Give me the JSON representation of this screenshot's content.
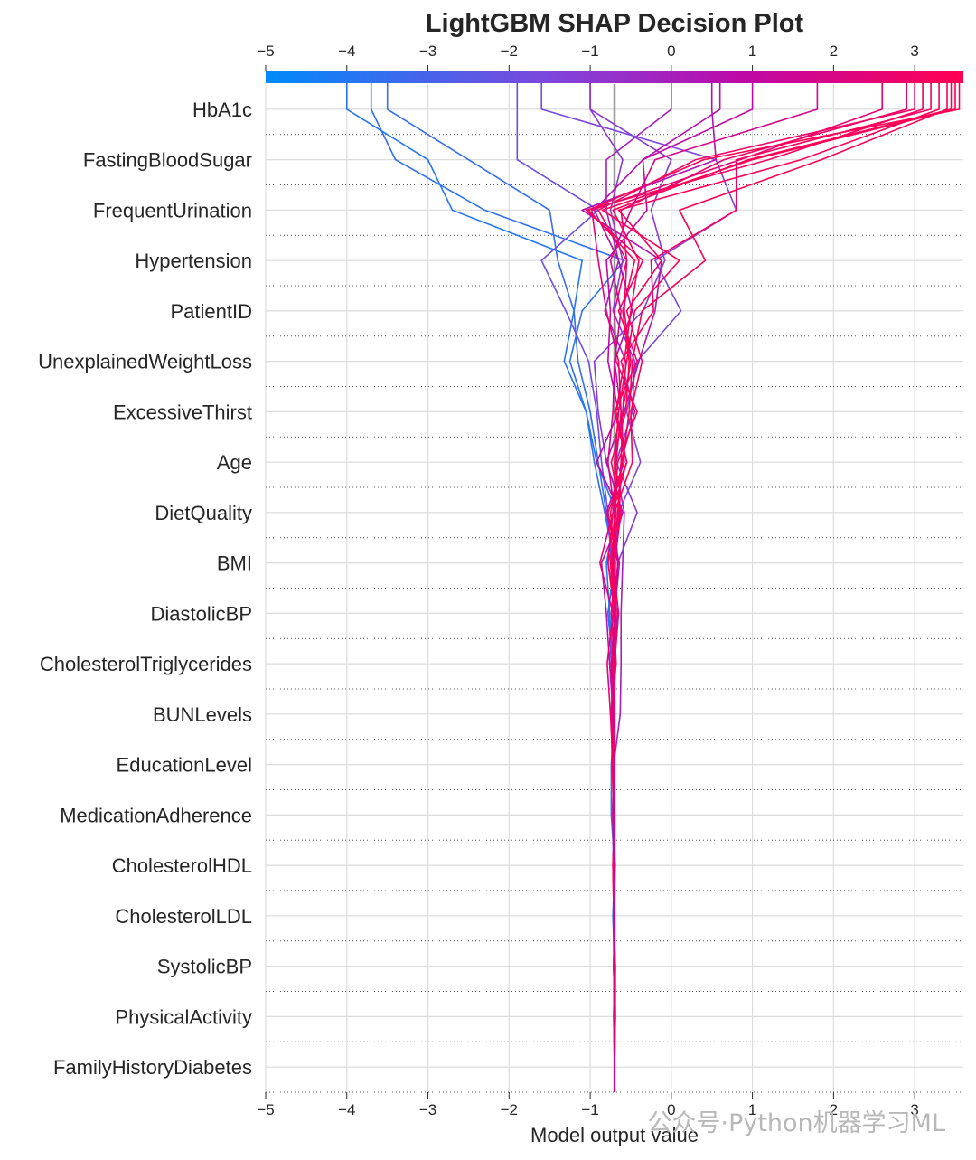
{
  "chart_data": {
    "type": "line",
    "title": "LightGBM SHAP Decision Plot",
    "xlabel": "Model output value",
    "xlim": [
      -5,
      3.6
    ],
    "x_ticks": [
      -5,
      -4,
      -3,
      -2,
      -1,
      0,
      1,
      2,
      3
    ],
    "x_tick_labels": [
      "−5",
      "−4",
      "−3",
      "−2",
      "−1",
      "0",
      "1",
      "2",
      "3"
    ],
    "base_value": -0.7,
    "features": [
      "HbA1c",
      "FastingBloodSugar",
      "FrequentUrination",
      "Hypertension",
      "PatientID",
      "UnexplainedWeightLoss",
      "ExcessiveThirst",
      "Age",
      "DietQuality",
      "BMI",
      "DiastolicBP",
      "CholesterolTriglycerides",
      "BUNLevels",
      "EducationLevel",
      "MedicationAdherence",
      "CholesterolHDL",
      "CholesterolLDL",
      "SystolicBP",
      "PhysicalActivity",
      "FamilyHistoryDiabetes"
    ],
    "colormap": [
      "#008afb",
      "#7c47dd",
      "#bd09a8",
      "#ff0052"
    ],
    "grid": true,
    "series": [
      {
        "values": [
          -0.7,
          -0.7,
          -0.71,
          -0.7,
          -0.71,
          -0.72,
          -0.7,
          -0.74,
          -0.72,
          -0.78,
          -0.7,
          -0.82,
          -0.95,
          -1.05,
          -1.25,
          -1.1,
          -0.58,
          -2.3,
          -3.4,
          -3.7
        ]
      },
      {
        "values": [
          -0.7,
          -0.7,
          -0.71,
          -0.7,
          -0.71,
          -0.72,
          -0.7,
          -0.74,
          -0.72,
          -0.78,
          -0.7,
          -0.8,
          -0.9,
          -1.0,
          -1.15,
          -1.2,
          -1.4,
          -1.5,
          -2.5,
          -3.5
        ]
      },
      {
        "values": [
          -0.7,
          -0.69,
          -0.7,
          -0.72,
          -0.7,
          -0.74,
          -0.74,
          -0.7,
          -0.72,
          -0.76,
          -0.8,
          -0.68,
          -0.92,
          -1.05,
          -1.32,
          -1.2,
          -1.1,
          -2.7,
          -3.0,
          -4.0
        ]
      },
      {
        "values": [
          -0.7,
          -0.7,
          -0.69,
          -0.71,
          -0.69,
          -0.73,
          -0.7,
          -0.72,
          -0.76,
          -0.72,
          -0.74,
          -0.78,
          -0.86,
          -0.92,
          -1.02,
          -1.3,
          -1.6,
          -0.9,
          -1.9,
          -1.9
        ]
      },
      {
        "values": [
          -0.7,
          -0.69,
          -0.69,
          -0.71,
          -0.7,
          -0.72,
          -0.71,
          -0.63,
          -0.62,
          -0.62,
          -0.6,
          -0.58,
          -0.7,
          -0.6,
          -0.56,
          -0.82,
          -0.65,
          -0.8,
          -0.8,
          0.0
        ]
      },
      {
        "values": [
          -0.7,
          -0.69,
          -0.7,
          -0.71,
          -0.7,
          -0.71,
          -0.7,
          -0.72,
          -0.69,
          -0.68,
          -0.78,
          -0.6,
          -0.8,
          -0.9,
          -0.95,
          -0.35,
          -0.08,
          -0.25,
          0.0,
          -1.0
        ]
      },
      {
        "values": [
          -0.7,
          -0.7,
          -0.7,
          -0.7,
          -0.72,
          -0.71,
          -0.7,
          -0.7,
          -0.71,
          -0.68,
          -0.72,
          -0.65,
          -0.38,
          -0.55,
          -0.42,
          0.12,
          -0.2,
          0.8,
          0.55,
          -1.6
        ]
      },
      {
        "values": [
          -0.7,
          -0.7,
          -0.7,
          -0.7,
          -0.71,
          -0.7,
          -0.7,
          -0.7,
          -0.72,
          -0.69,
          -0.66,
          -0.42,
          -0.68,
          -0.48,
          -0.45,
          -0.72,
          -0.6,
          -0.75,
          -0.6,
          -1.0
        ]
      },
      {
        "values": [
          -0.7,
          -0.7,
          -0.7,
          -0.7,
          -0.7,
          -0.71,
          -0.7,
          -0.71,
          -0.76,
          -0.8,
          -0.86,
          -0.6,
          -0.8,
          -0.58,
          -0.4,
          -0.2,
          -0.12,
          -1.1,
          0.55,
          0.5
        ]
      },
      {
        "values": [
          -0.7,
          -0.7,
          -0.7,
          -0.71,
          -0.7,
          -0.71,
          -0.7,
          -0.72,
          -0.74,
          -0.7,
          -0.64,
          -0.8,
          -0.58,
          -0.62,
          -0.7,
          -0.48,
          -0.65,
          -0.95,
          -0.35,
          0.6
        ]
      },
      {
        "values": [
          -0.7,
          -0.7,
          -0.7,
          -0.7,
          -0.71,
          -0.72,
          -0.71,
          -0.74,
          -0.7,
          -0.66,
          -0.7,
          -0.63,
          -0.92,
          -0.65,
          -0.78,
          -0.75,
          -0.8,
          -0.3,
          -0.35,
          1.0
        ]
      },
      {
        "values": [
          -0.7,
          -0.7,
          -0.71,
          -0.7,
          -0.7,
          -0.71,
          -0.72,
          -0.75,
          -0.79,
          -0.72,
          -0.88,
          -0.72,
          -0.68,
          -0.62,
          -0.65,
          -0.8,
          -0.9,
          -0.98,
          0.85,
          2.6
        ]
      },
      {
        "values": [
          -0.7,
          -0.71,
          -0.7,
          -0.71,
          -0.72,
          -0.7,
          -0.73,
          -0.74,
          -0.68,
          -0.71,
          -0.66,
          -0.78,
          -0.55,
          -0.7,
          -0.42,
          -0.65,
          -0.35,
          -1.05,
          1.2,
          3.1
        ]
      },
      {
        "values": [
          -0.7,
          -0.7,
          -0.71,
          -0.71,
          -0.7,
          -0.72,
          -0.71,
          -0.73,
          -0.7,
          -0.65,
          -0.72,
          -0.7,
          -0.48,
          -0.5,
          -0.36,
          -0.55,
          -0.12,
          -0.65,
          1.6,
          3.3
        ]
      },
      {
        "values": [
          -0.7,
          -0.7,
          -0.7,
          -0.71,
          -0.72,
          -0.7,
          -0.71,
          -0.72,
          -0.74,
          -0.68,
          -0.75,
          -0.68,
          -0.7,
          -0.65,
          -0.55,
          -0.45,
          0.1,
          -0.85,
          1.0,
          3.5
        ]
      },
      {
        "values": [
          -0.7,
          -0.7,
          -0.7,
          -0.71,
          -0.7,
          -0.72,
          -0.7,
          -0.7,
          -0.73,
          -0.7,
          -0.69,
          -0.75,
          -0.6,
          -0.52,
          -0.48,
          -0.36,
          0.42,
          0.1,
          1.85,
          3.4
        ]
      },
      {
        "values": [
          -0.7,
          -0.71,
          -0.7,
          -0.7,
          -0.71,
          -0.7,
          -0.72,
          -0.7,
          -0.72,
          -0.68,
          -0.73,
          -0.66,
          -0.62,
          -0.45,
          -0.62,
          -0.22,
          -0.25,
          0.8,
          0.8,
          3.2
        ]
      },
      {
        "values": [
          -0.7,
          -0.7,
          -0.71,
          -0.7,
          -0.7,
          -0.71,
          -0.73,
          -0.72,
          -0.7,
          -0.7,
          -0.78,
          -0.72,
          -0.55,
          -0.68,
          -0.58,
          -0.5,
          -0.4,
          -0.72,
          0.95,
          3.45
        ]
      },
      {
        "values": [
          -0.7,
          -0.7,
          -0.7,
          -0.71,
          -0.71,
          -0.7,
          -0.7,
          -0.72,
          -0.71,
          -0.69,
          -0.7,
          -0.62,
          -0.74,
          -0.56,
          -0.52,
          -0.6,
          -0.45,
          -1.02,
          0.4,
          3.55
        ]
      },
      {
        "values": [
          -0.7,
          -0.7,
          -0.71,
          -0.7,
          -0.7,
          -0.7,
          -0.71,
          -0.72,
          -0.7,
          -0.74,
          -0.69,
          -0.7,
          -0.66,
          -0.42,
          -0.68,
          -0.7,
          -0.55,
          -0.62,
          0.65,
          2.9
        ]
      },
      {
        "values": [
          -0.7,
          -0.7,
          -0.7,
          -0.71,
          -0.71,
          -0.7,
          -0.72,
          -0.71,
          -0.69,
          -0.7,
          -0.75,
          -0.64,
          -0.62,
          -0.6,
          -0.5,
          -0.58,
          -0.55,
          -0.9,
          0.3,
          3.0
        ]
      },
      {
        "values": [
          -0.7,
          -0.7,
          -0.7,
          -0.7,
          -0.71,
          -0.72,
          -0.7,
          -0.73,
          -0.72,
          -0.7,
          -0.66,
          -0.7,
          -0.78,
          -0.72,
          -0.7,
          -0.62,
          -0.75,
          -0.5,
          -0.2,
          1.8
        ]
      }
    ]
  },
  "watermark": "公众号·Python机器学习ML"
}
